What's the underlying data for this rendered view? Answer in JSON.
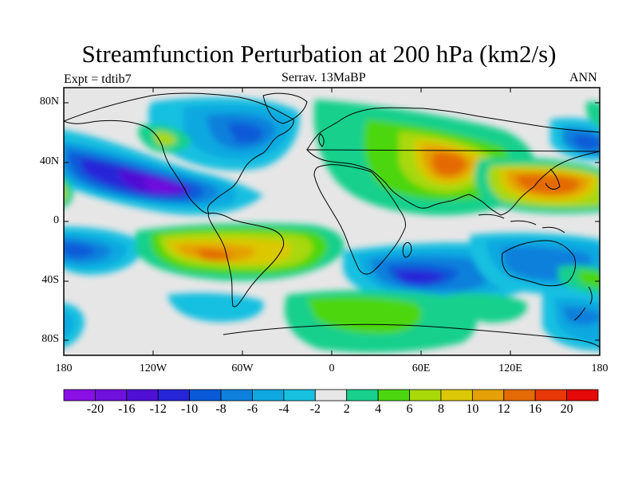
{
  "title": "Streamfunction Perturbation at 200 hPa (km2/s)",
  "left_label": "Expt = tdtib7",
  "center_label": "Serrav.   13MaBP",
  "right_label": "ANN",
  "axes": {
    "y_ticks": [
      "80N",
      "40N",
      "0",
      "40S",
      "80S"
    ],
    "x_ticks": [
      "180",
      "120W",
      "60W",
      "0",
      "60E",
      "120E",
      "180"
    ]
  },
  "colorbar": {
    "labels": [
      "-20",
      "-16",
      "-12",
      "-10",
      "-8",
      "-6",
      "-4",
      "-2",
      "2",
      "4",
      "6",
      "8",
      "10",
      "12",
      "16",
      "20"
    ],
    "colors": [
      "#8a10e6",
      "#6f10dd",
      "#5010d4",
      "#2626d8",
      "#0a5ad8",
      "#0f80dc",
      "#10a8e0",
      "#18c0e0",
      "#e6e6e6",
      "#18d08c",
      "#4cd610",
      "#a8d808",
      "#dcc806",
      "#e4a006",
      "#e46a06",
      "#e83808",
      "#e40808"
    ]
  }
}
